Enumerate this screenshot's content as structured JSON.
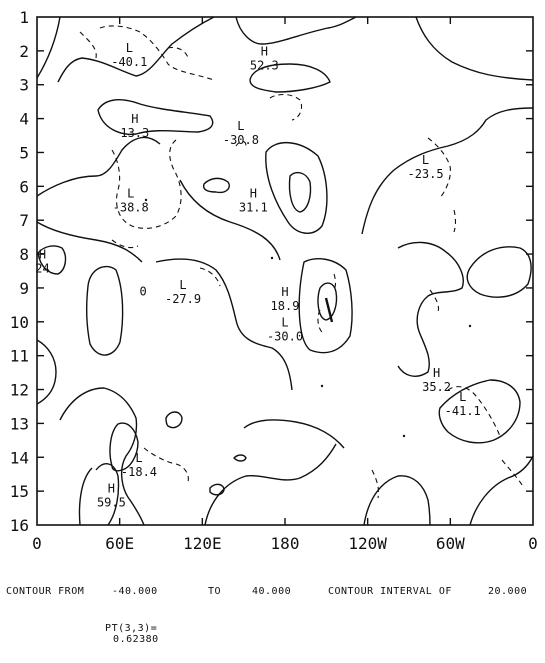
{
  "chart_data": {
    "type": "contour",
    "title": "",
    "xlabel": "",
    "ylabel": "",
    "x_ticks": [
      "0",
      "60E",
      "120E",
      "180",
      "120W",
      "60W",
      "0"
    ],
    "y_ticks": [
      "1",
      "2",
      "3",
      "4",
      "5",
      "6",
      "7",
      "8",
      "9",
      "10",
      "11",
      "12",
      "13",
      "14",
      "15",
      "16"
    ],
    "ylim": [
      1,
      16
    ],
    "y_inverted": true,
    "contour_min": -40.0,
    "contour_max": 40.0,
    "contour_interval": 20.0,
    "negative_contours": "dashed",
    "extrema": [
      {
        "type": "L",
        "value": "-40.1",
        "lon": 67,
        "row": 2.3
      },
      {
        "type": "H",
        "value": "52.3",
        "lon": 165,
        "row": 2.4
      },
      {
        "type": "H",
        "value": "13.3",
        "lon": 71,
        "row": 4.4
      },
      {
        "type": "L",
        "value": "-30.8",
        "lon": 148,
        "row": 4.6
      },
      {
        "type": "L",
        "value": "-23.5",
        "lon": 282,
        "row": 5.6
      },
      {
        "type": "L",
        "value": "-38.8",
        "lon": 68,
        "row": 6.6
      },
      {
        "type": "H",
        "value": "31.1",
        "lon": 157,
        "row": 6.6
      },
      {
        "type": "H",
        "value": "24",
        "lon": 4,
        "row": 8.4
      },
      {
        "type": "L",
        "value": "-27.9",
        "lon": 106,
        "row": 9.3
      },
      {
        "type": "H",
        "value": "18.9",
        "lon": 180,
        "row": 9.5
      },
      {
        "type": "L",
        "value": "-30.0",
        "lon": 180,
        "row": 10.4
      },
      {
        "type": "H",
        "value": "35.2",
        "lon": 290,
        "row": 11.9
      },
      {
        "type": "L",
        "value": "-41.1",
        "lon": 309,
        "row": 12.6
      },
      {
        "type": "L",
        "value": "-18.4",
        "lon": 74,
        "row": 14.4
      },
      {
        "type": "H",
        "value": "59.5",
        "lon": 54,
        "row": 15.3
      }
    ],
    "zero_label": {
      "value": "0",
      "lon": 77,
      "row": 9.1
    }
  },
  "footer": {
    "contour_from_label": "CONTOUR FROM",
    "contour_from_value": "-40.000",
    "to_label": "TO",
    "to_value": "40.000",
    "interval_label": "CONTOUR INTERVAL OF",
    "interval_value": "20.000",
    "pt_label": "PT(3,3)=",
    "pt_value": "0.62380"
  }
}
